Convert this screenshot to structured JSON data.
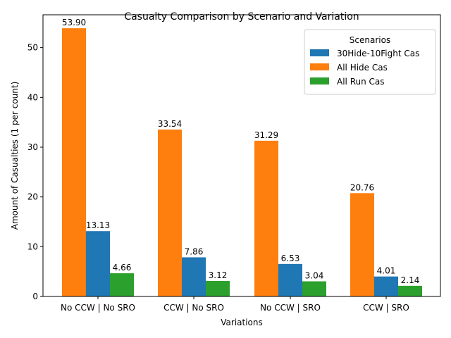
{
  "chart_data": {
    "type": "bar",
    "title": "Casualty Comparison by Scenario and Variation",
    "xlabel": "Variations",
    "ylabel": "Amount of Casualties (1 per count)",
    "categories": [
      "No CCW | No SRO",
      "CCW | No SRO",
      "No CCW | SRO",
      "CCW | SRO"
    ],
    "series": [
      {
        "name": "All Hide Cas",
        "color": "#ff7f0e",
        "values": [
          53.9,
          33.54,
          31.29,
          20.76
        ]
      },
      {
        "name": "30Hide-10Fight Cas",
        "color": "#1f77b4",
        "values": [
          13.13,
          7.86,
          6.53,
          4.01
        ]
      },
      {
        "name": "All Run Cas",
        "color": "#2ca02c",
        "values": [
          4.66,
          3.12,
          3.04,
          2.14
        ]
      }
    ],
    "data_labels": [
      [
        "53.90",
        "33.54",
        "31.29",
        "20.76"
      ],
      [
        "13.13",
        "7.86",
        "6.53",
        "4.01"
      ],
      [
        "4.66",
        "3.12",
        "3.04",
        "2.14"
      ]
    ],
    "legend": {
      "title": "Scenarios",
      "placement": "top-right",
      "entries": [
        "30Hide-10Fight Cas",
        "All Hide Cas",
        "All Run Cas"
      ]
    },
    "ylim": [
      0,
      56.6
    ],
    "yticks": [
      0,
      10,
      20,
      30,
      40,
      50
    ],
    "ytick_labels": [
      "0",
      "10",
      "20",
      "30",
      "40",
      "50"
    ],
    "grid": false
  }
}
